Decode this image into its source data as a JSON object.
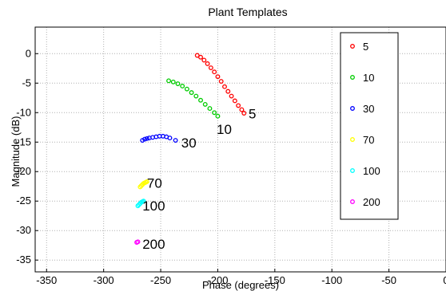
{
  "chart_data": {
    "type": "scatter",
    "title": "Plant Templates",
    "xlabel": "Phase (degrees)",
    "ylabel": "Magnitude (dB)",
    "xlim": [
      -360,
      0
    ],
    "ylim": [
      -37,
      4.5
    ],
    "xticks": [
      "-350",
      "-300",
      "-250",
      "-200",
      "-150",
      "-100",
      "-50",
      "0"
    ],
    "yticks": [
      "0",
      "-5",
      "-10",
      "-15",
      "-20",
      "-25",
      "-30",
      "-35"
    ],
    "grid": true,
    "legend_position": "top-right",
    "series": [
      {
        "name": "5",
        "color": "#ff0000",
        "marker": "circle",
        "x": [
          -218,
          -215,
          -212,
          -209,
          -206,
          -203,
          -200,
          -197,
          -194,
          -191,
          -188,
          -185,
          -182,
          -179,
          -177
        ],
        "y": [
          -0.3,
          -0.6,
          -1.1,
          -1.7,
          -2.4,
          -3.1,
          -3.9,
          -4.7,
          -5.6,
          -6.4,
          -7.2,
          -8.0,
          -8.8,
          -9.5,
          -10.1
        ]
      },
      {
        "name": "10",
        "color": "#00cc00",
        "marker": "circle",
        "x": [
          -243,
          -239,
          -235,
          -231,
          -227,
          -223,
          -219,
          -215,
          -211,
          -207,
          -203,
          -200
        ],
        "y": [
          -4.6,
          -4.8,
          -5.1,
          -5.5,
          -6.0,
          -6.6,
          -7.2,
          -7.9,
          -8.6,
          -9.3,
          -10.0,
          -10.6
        ]
      },
      {
        "name": "30",
        "color": "#0000ff",
        "marker": "circle",
        "x": [
          -266,
          -264,
          -262,
          -260,
          -257,
          -254,
          -251,
          -248,
          -245,
          -242,
          -237
        ],
        "y": [
          -14.7,
          -14.5,
          -14.4,
          -14.3,
          -14.2,
          -14.1,
          -14.0,
          -14.0,
          -14.1,
          -14.3,
          -14.7
        ]
      },
      {
        "name": "70",
        "color": "#ffff00",
        "marker": "circle",
        "x": [
          -268,
          -267,
          -266,
          -265,
          -264,
          -263,
          -262
        ],
        "y": [
          -22.6,
          -22.4,
          -22.2,
          -22.0,
          -21.9,
          -21.8,
          -21.7
        ]
      },
      {
        "name": "100",
        "color": "#00ffff",
        "marker": "circle",
        "x": [
          -270,
          -269,
          -268,
          -267,
          -266,
          -265
        ],
        "y": [
          -25.8,
          -25.6,
          -25.4,
          -25.2,
          -25.1,
          -25.0
        ]
      },
      {
        "name": "200",
        "color": "#ff00ff",
        "marker": "circle",
        "x": [
          -271,
          -270
        ],
        "y": [
          -32.0,
          -31.9
        ]
      }
    ],
    "annotations": [
      {
        "text": "5",
        "x": -173,
        "y": -10.2
      },
      {
        "text": "10",
        "x": -201,
        "y": -12.8
      },
      {
        "text": "30",
        "x": -232,
        "y": -15.1
      },
      {
        "text": "70",
        "x": -262,
        "y": -21.9
      },
      {
        "text": "100",
        "x": -266,
        "y": -25.8
      },
      {
        "text": "200",
        "x": -266,
        "y": -32.3
      }
    ]
  }
}
